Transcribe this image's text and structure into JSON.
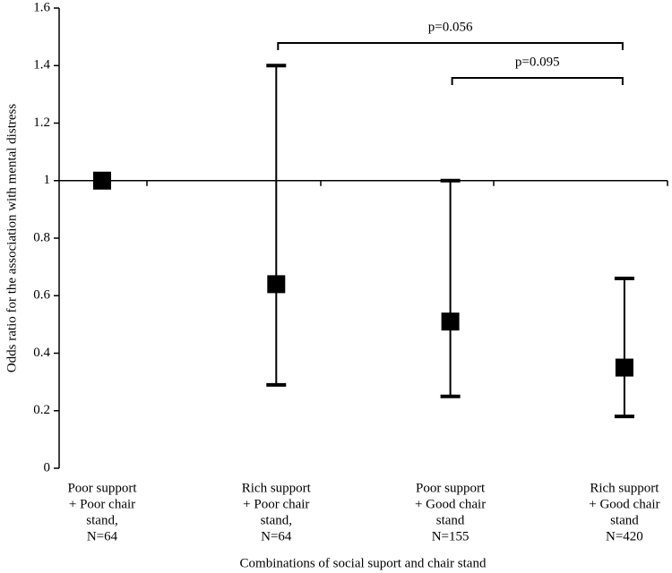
{
  "chart_data": {
    "type": "errorbar",
    "x_label": "Combinations of social suport and chair stand",
    "y_label": "Odds ratio for the association with mental distress",
    "categories": [
      [
        "Poor support",
        "+ Poor chair",
        "stand,",
        "N=64"
      ],
      [
        "Rich support",
        "+ Poor chair",
        "stand,",
        "N=64"
      ],
      [
        "Poor support",
        "+ Good chair",
        "stand",
        "N=155"
      ],
      [
        "Rich support",
        "+ Good chair",
        "stand",
        "N=420"
      ]
    ],
    "values": [
      1,
      0.64,
      0.51,
      0.35
    ],
    "lower": [
      null,
      0.29,
      0.25,
      0.18
    ],
    "upper": [
      null,
      1.4,
      1.0,
      0.66
    ],
    "color": "#000000",
    "reference_line": 1,
    "ylim": [
      0,
      1.6
    ],
    "yticks": [
      0,
      0.2,
      0.4,
      0.6,
      0.8,
      1,
      1.2,
      1.4,
      1.6
    ],
    "annotations": [
      "p=0.056",
      "p=0.095"
    ]
  }
}
